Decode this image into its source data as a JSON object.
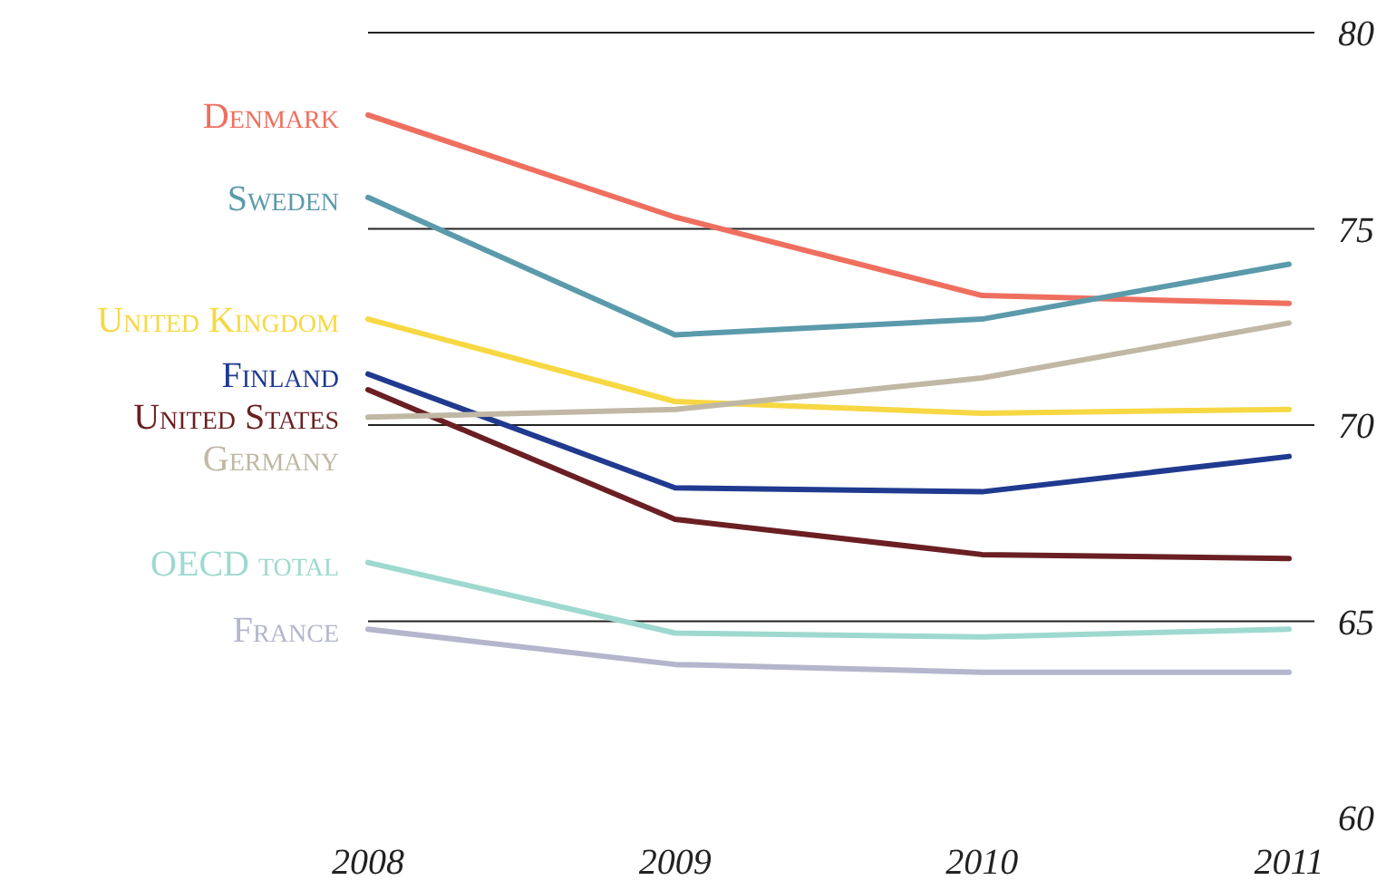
{
  "chart_data": {
    "type": "line",
    "x": [
      2008,
      2009,
      2010,
      2011
    ],
    "xlim": [
      2008,
      2011
    ],
    "xticks": [
      2008,
      2009,
      2010,
      2011
    ],
    "ylim": [
      60,
      80
    ],
    "yticks": [
      60,
      65,
      70,
      75,
      80
    ],
    "grid": "y",
    "legend": "left",
    "marker": "none",
    "line_style": "solid",
    "series": [
      {
        "name": "Denmark",
        "color": "#ef6f5f",
        "values": [
          77.9,
          75.3,
          73.3,
          73.1
        ]
      },
      {
        "name": "Sweden",
        "color": "#5a9aab",
        "values": [
          75.8,
          72.3,
          72.7,
          74.1
        ]
      },
      {
        "name": "United Kingdom",
        "color": "#f7d843",
        "values": [
          72.7,
          70.6,
          70.3,
          70.4
        ]
      },
      {
        "name": "Finland",
        "color": "#1f3a8f",
        "values": [
          71.3,
          68.4,
          68.3,
          69.2
        ]
      },
      {
        "name": "United States",
        "color": "#6b1f22",
        "values": [
          70.9,
          67.6,
          66.7,
          66.6
        ]
      },
      {
        "name": "Germany",
        "color": "#c0b8a4",
        "values": [
          70.2,
          70.4,
          71.2,
          72.6
        ]
      },
      {
        "name": "OECD total",
        "color": "#9ed9cf",
        "values": [
          66.5,
          64.7,
          64.6,
          64.8
        ]
      },
      {
        "name": "France",
        "color": "#b3b6cc",
        "values": [
          64.8,
          63.9,
          63.7,
          63.7
        ]
      }
    ]
  }
}
